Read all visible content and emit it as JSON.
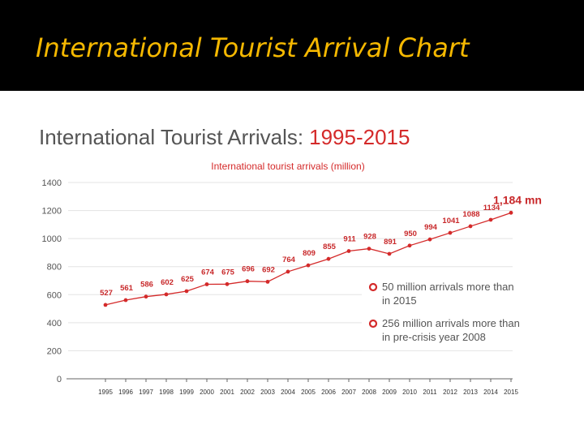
{
  "slide": {
    "title": "International Tourist Arrival Chart"
  },
  "colors": {
    "header_bg": "#000000",
    "title_color": "#f5b800",
    "accent": "#d42a2a",
    "grid": "#e3e3e3",
    "label_gray": "#555555"
  },
  "chart_data": {
    "type": "line",
    "title": "International Tourist Arrivals:",
    "title_range": "1995-2015",
    "subtitle": "International tourist arrivals (million)",
    "x": [
      "1995",
      "1996",
      "1997",
      "1998",
      "1999",
      "2000",
      "2001",
      "2002",
      "2003",
      "2004",
      "2005",
      "2006",
      "2007",
      "2008",
      "2009",
      "2010",
      "2011",
      "2012",
      "2013",
      "2014",
      "2015"
    ],
    "series": [
      {
        "values": [
          527,
          561,
          586,
          602,
          625,
          674,
          675,
          696,
          692,
          764,
          809,
          855,
          911,
          928,
          891,
          950,
          994,
          1041,
          1088,
          1134,
          1184
        ]
      }
    ],
    "point_labels": [
      "527",
      "561",
      "586",
      "602",
      "625",
      "674",
      "675",
      "696",
      "692",
      "764",
      "809",
      "855",
      "911",
      "928",
      "891",
      "950",
      "994",
      "1041",
      "1088",
      "1134",
      "1,184 mn"
    ],
    "ylim": [
      0,
      1400
    ],
    "yticks": [
      0,
      200,
      400,
      600,
      800,
      1000,
      1200,
      1400
    ],
    "grid": true,
    "legend": "none",
    "notes": [
      {
        "line1": "50 million arrivals more than",
        "line2": "in 2015"
      },
      {
        "line1": "256 million arrivals more than",
        "line2": "in pre-crisis year 2008"
      }
    ]
  }
}
